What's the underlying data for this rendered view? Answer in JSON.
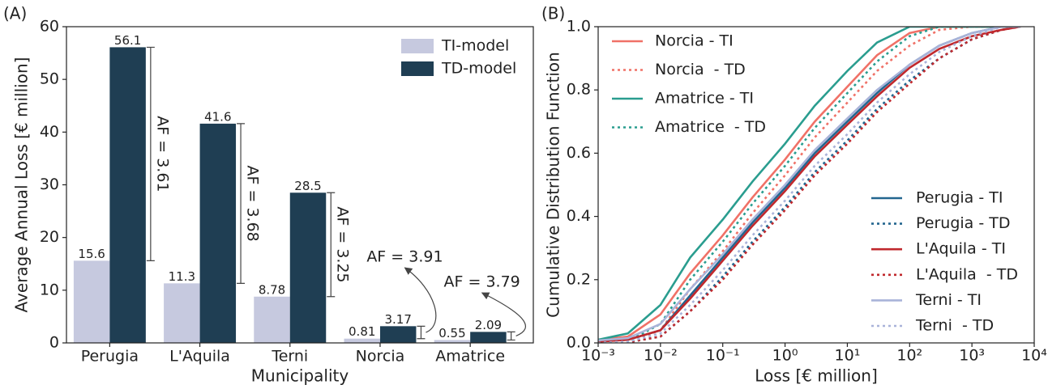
{
  "chart_data": [
    {
      "type": "bar",
      "label": "(A)",
      "ylabel": "Average Annual Loss [€ million]",
      "xlabel": "Municipality",
      "categories": [
        "Perugia",
        "L'Aquila",
        "Terni",
        "Norcia",
        "Amatrice"
      ],
      "series": [
        {
          "name": "TI-model",
          "color": "#c6c9df",
          "values": [
            15.6,
            11.3,
            8.78,
            0.81,
            0.55
          ]
        },
        {
          "name": "TD-model",
          "color": "#1f3e53",
          "values": [
            56.1,
            41.6,
            28.5,
            3.17,
            2.09
          ]
        }
      ],
      "af_labels": [
        "AF = 3.61",
        "AF = 3.68",
        "AF = 3.25",
        "AF = 3.91",
        "AF = 3.79"
      ],
      "ylim": [
        0,
        60
      ],
      "yticks": [
        0,
        10,
        20,
        30,
        40,
        50,
        60
      ],
      "legend": "upper right"
    },
    {
      "type": "line",
      "label": "(B)",
      "ylabel": "Cumulative Distribution Function",
      "xlabel": "Loss [€ million]",
      "xscale": "log",
      "xlim": [
        0.001,
        10000
      ],
      "xticks": [
        {
          "value": 0.001,
          "label": "10⁻³"
        },
        {
          "value": 0.01,
          "label": "10⁻²"
        },
        {
          "value": 0.1,
          "label": "10⁻¹"
        },
        {
          "value": 1,
          "label": "10⁰"
        },
        {
          "value": 10,
          "label": "10¹"
        },
        {
          "value": 100,
          "label": "10²"
        },
        {
          "value": 1000,
          "label": "10³"
        },
        {
          "value": 10000,
          "label": "10⁴"
        }
      ],
      "ylim": [
        0,
        1
      ],
      "yticks": [
        {
          "value": 0,
          "label": "0.0"
        },
        0.2,
        0.4,
        0.6,
        0.8,
        {
          "value": 1,
          "label": "1.0"
        }
      ],
      "x": [
        0.001,
        0.003,
        0.01,
        0.03,
        0.1,
        0.3,
        1,
        3,
        10,
        30,
        100,
        300,
        1000,
        3000,
        6000
      ],
      "series": [
        {
          "name": "Norcia - TI",
          "color": "#f07167",
          "style": "solid",
          "legend": "upper left",
          "values": [
            0.01,
            0.02,
            0.09,
            0.22,
            0.34,
            0.46,
            0.58,
            0.7,
            0.81,
            0.91,
            0.98,
            1.0,
            1.0,
            1.0,
            1.0
          ]
        },
        {
          "name": "Norcia  - TD",
          "color": "#f07167",
          "style": "dotted",
          "legend": "upper left",
          "values": [
            0,
            0.003,
            0.04,
            0.17,
            0.29,
            0.41,
            0.53,
            0.65,
            0.76,
            0.86,
            0.94,
            0.99,
            1.0,
            1.0,
            1.0
          ]
        },
        {
          "name": "Amatrice - TI",
          "color": "#2a9d8f",
          "style": "solid",
          "legend": "upper left",
          "values": [
            0.01,
            0.03,
            0.12,
            0.27,
            0.39,
            0.51,
            0.63,
            0.75,
            0.86,
            0.95,
            1.0,
            1.0,
            1.0,
            1.0,
            1.0
          ]
        },
        {
          "name": "Amatrice  - TD",
          "color": "#2a9d8f",
          "style": "dotted",
          "legend": "upper left",
          "values": [
            0,
            0.005,
            0.06,
            0.2,
            0.32,
            0.44,
            0.56,
            0.68,
            0.79,
            0.89,
            0.97,
            1.0,
            1.0,
            1.0,
            1.0
          ]
        },
        {
          "name": "Perugia - TI",
          "color": "#23668f",
          "style": "solid",
          "legend": "lower right",
          "values": [
            0.005,
            0.01,
            0.04,
            0.15,
            0.27,
            0.38,
            0.49,
            0.6,
            0.7,
            0.79,
            0.88,
            0.94,
            0.98,
            1.0,
            1.0
          ]
        },
        {
          "name": "Perugia - TD",
          "color": "#23668f",
          "style": "dotted",
          "legend": "lower right",
          "values": [
            0,
            0.002,
            0.02,
            0.1,
            0.21,
            0.32,
            0.43,
            0.54,
            0.64,
            0.74,
            0.83,
            0.9,
            0.96,
            0.99,
            1.0
          ]
        },
        {
          "name": "L'Aquila - TI",
          "color": "#c0282d",
          "style": "solid",
          "legend": "lower right",
          "values": [
            0.004,
            0.01,
            0.04,
            0.14,
            0.26,
            0.37,
            0.48,
            0.59,
            0.69,
            0.78,
            0.87,
            0.93,
            0.97,
            0.99,
            1.0
          ]
        },
        {
          "name": "L'Aquila  - TD",
          "color": "#c0282d",
          "style": "dotted",
          "legend": "lower right",
          "values": [
            0,
            0.002,
            0.02,
            0.1,
            0.2,
            0.31,
            0.42,
            0.53,
            0.63,
            0.73,
            0.82,
            0.9,
            0.96,
            0.99,
            1.0
          ]
        },
        {
          "name": "Terni - TI",
          "color": "#a9b3d9",
          "style": "solid",
          "legend": "lower right",
          "values": [
            0.008,
            0.015,
            0.06,
            0.17,
            0.28,
            0.39,
            0.5,
            0.61,
            0.71,
            0.8,
            0.88,
            0.94,
            0.98,
            1.0,
            1.0
          ]
        },
        {
          "name": "Terni  - TD",
          "color": "#a9b3d9",
          "style": "dotted",
          "legend": "lower right",
          "values": [
            0,
            0.004,
            0.03,
            0.12,
            0.23,
            0.34,
            0.45,
            0.56,
            0.66,
            0.76,
            0.85,
            0.92,
            0.97,
            1.0,
            1.0
          ]
        }
      ]
    }
  ]
}
